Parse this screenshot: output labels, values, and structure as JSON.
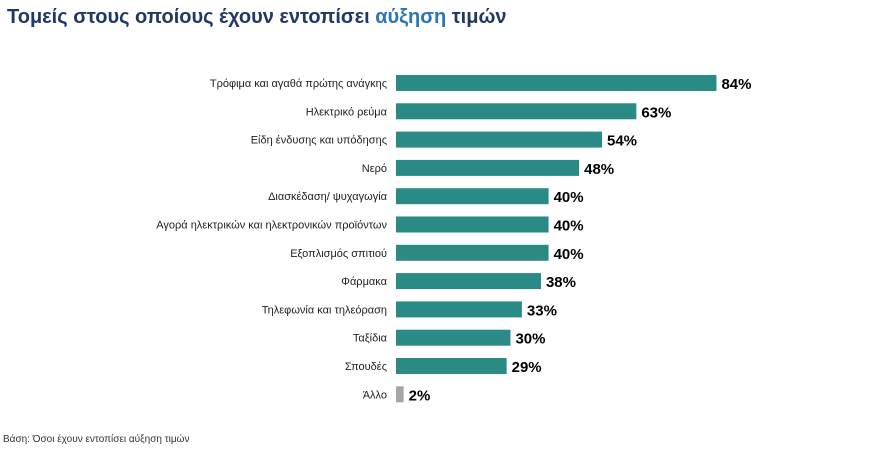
{
  "title": {
    "before": "Τομείς στους οποίους έχουν εντοπίσει ",
    "highlight": "αύξηση",
    "after": " τιμών"
  },
  "footnote": "Βάση: Όσοι έχουν εντοπίσει αύξηση τιμών",
  "colors": {
    "title": "#1f3864",
    "highlight": "#2e75b6",
    "bar": "#2a8a85",
    "bar_other": "#a6a6a6"
  },
  "chart_data": {
    "type": "bar",
    "orientation": "horizontal",
    "title": "Τομείς στους οποίους έχουν εντοπίσει αύξηση τιμών",
    "xlim": [
      0,
      100
    ],
    "grid": false,
    "legend": "none",
    "categories": [
      "Τρόφιμα και αγαθά πρώτης ανάγκης",
      "Ηλεκτρικό ρεύμα",
      "Είδη ένδυσης και υπόδησης",
      "Νερό",
      "Διασκέδαση/ ψυχαγωγία",
      "Αγορά ηλεκτρικών και ηλεκτρονικών προϊόντων",
      "Εξοπλισμός σπιτιού",
      "Φάρμακα",
      "Τηλεφωνία και τηλεόραση",
      "Ταξίδια",
      "Σπουδές",
      "Άλλο"
    ],
    "values": [
      84,
      63,
      54,
      48,
      40,
      40,
      40,
      38,
      33,
      30,
      29,
      2
    ],
    "value_labels": [
      "84%",
      "63%",
      "54%",
      "48%",
      "40%",
      "40%",
      "40%",
      "38%",
      "33%",
      "30%",
      "29%",
      "2%"
    ]
  }
}
